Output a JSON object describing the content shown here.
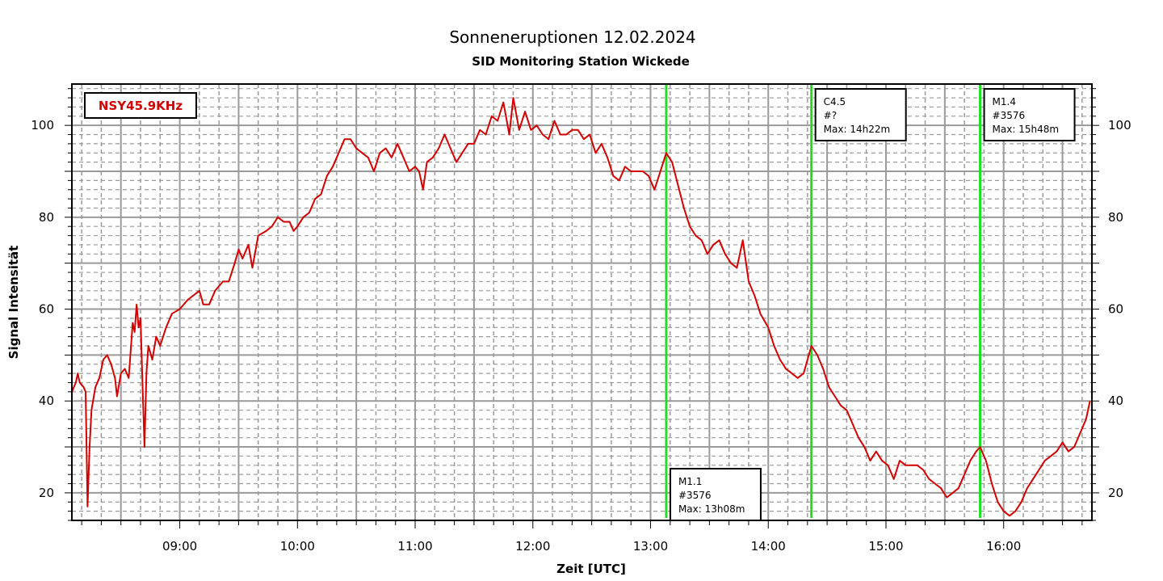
{
  "chart_data": {
    "type": "line",
    "title": "Sonneneruptionen 12.02.2024",
    "subtitle": "SID Monitoring Station Wickede",
    "xlabel": "Zeit [UTC]",
    "ylabel": "Signal Intensität",
    "x_unit": "UTC",
    "xlim": [
      "08:05",
      "16:45"
    ],
    "ylim": [
      14,
      109
    ],
    "x_ticks": [
      "09:00",
      "10:00",
      "11:00",
      "12:00",
      "13:00",
      "14:00",
      "15:00",
      "16:00"
    ],
    "y_ticks": [
      20,
      40,
      60,
      80,
      100
    ],
    "grid": true,
    "legend": {
      "placement": "top-left",
      "entries": [
        "NSY45.9KHz"
      ]
    },
    "colors": {
      "series": "#d40000",
      "event_line": "#22dd22",
      "grid": "#9a9a9a"
    },
    "series": [
      {
        "name": "NSY45.9KHz",
        "points": [
          [
            "08:05",
            42
          ],
          [
            "08:07",
            44
          ],
          [
            "08:08",
            46
          ],
          [
            "08:09",
            44
          ],
          [
            "08:11",
            43
          ],
          [
            "08:12",
            42
          ],
          [
            "08:13",
            17
          ],
          [
            "08:14",
            30
          ],
          [
            "08:15",
            38
          ],
          [
            "08:17",
            43
          ],
          [
            "08:19",
            45
          ],
          [
            "08:21",
            49
          ],
          [
            "08:23",
            50
          ],
          [
            "08:25",
            48
          ],
          [
            "08:27",
            45
          ],
          [
            "08:28",
            41
          ],
          [
            "08:30",
            46
          ],
          [
            "08:32",
            47
          ],
          [
            "08:34",
            45
          ],
          [
            "08:36",
            57
          ],
          [
            "08:37",
            55
          ],
          [
            "08:38",
            61
          ],
          [
            "08:39",
            56
          ],
          [
            "08:40",
            58
          ],
          [
            "08:41",
            44
          ],
          [
            "08:42",
            30
          ],
          [
            "08:43",
            46
          ],
          [
            "08:44",
            52
          ],
          [
            "08:46",
            49
          ],
          [
            "08:48",
            54
          ],
          [
            "08:50",
            52
          ],
          [
            "08:53",
            56
          ],
          [
            "08:56",
            59
          ],
          [
            "09:00",
            60
          ],
          [
            "09:04",
            62
          ],
          [
            "09:07",
            63
          ],
          [
            "09:10",
            64
          ],
          [
            "09:12",
            61
          ],
          [
            "09:15",
            61
          ],
          [
            "09:18",
            64
          ],
          [
            "09:22",
            66
          ],
          [
            "09:25",
            66
          ],
          [
            "09:28",
            70
          ],
          [
            "09:30",
            73
          ],
          [
            "09:32",
            71
          ],
          [
            "09:35",
            74
          ],
          [
            "09:37",
            69
          ],
          [
            "09:40",
            76
          ],
          [
            "09:44",
            77
          ],
          [
            "09:47",
            78
          ],
          [
            "09:50",
            80
          ],
          [
            "09:53",
            79
          ],
          [
            "09:56",
            79
          ],
          [
            "09:58",
            77
          ],
          [
            "10:00",
            78
          ],
          [
            "10:03",
            80
          ],
          [
            "10:06",
            81
          ],
          [
            "10:09",
            84
          ],
          [
            "10:12",
            85
          ],
          [
            "10:15",
            89
          ],
          [
            "10:18",
            91
          ],
          [
            "10:21",
            94
          ],
          [
            "10:24",
            97
          ],
          [
            "10:27",
            97
          ],
          [
            "10:30",
            95
          ],
          [
            "10:33",
            94
          ],
          [
            "10:36",
            93
          ],
          [
            "10:39",
            90
          ],
          [
            "10:42",
            94
          ],
          [
            "10:45",
            95
          ],
          [
            "10:48",
            93
          ],
          [
            "10:51",
            96
          ],
          [
            "10:54",
            93
          ],
          [
            "10:57",
            90
          ],
          [
            "11:00",
            91
          ],
          [
            "11:02",
            90
          ],
          [
            "11:04",
            86
          ],
          [
            "11:06",
            92
          ],
          [
            "11:09",
            93
          ],
          [
            "11:12",
            95
          ],
          [
            "11:15",
            98
          ],
          [
            "11:18",
            95
          ],
          [
            "11:21",
            92
          ],
          [
            "11:24",
            94
          ],
          [
            "11:27",
            96
          ],
          [
            "11:30",
            96
          ],
          [
            "11:33",
            99
          ],
          [
            "11:36",
            98
          ],
          [
            "11:39",
            102
          ],
          [
            "11:42",
            101
          ],
          [
            "11:45",
            105
          ],
          [
            "11:48",
            98
          ],
          [
            "11:50",
            106
          ],
          [
            "11:53",
            99
          ],
          [
            "11:56",
            103
          ],
          [
            "11:59",
            99
          ],
          [
            "12:02",
            100
          ],
          [
            "12:05",
            98
          ],
          [
            "12:08",
            97
          ],
          [
            "12:11",
            101
          ],
          [
            "12:14",
            98
          ],
          [
            "12:17",
            98
          ],
          [
            "12:20",
            99
          ],
          [
            "12:23",
            99
          ],
          [
            "12:26",
            97
          ],
          [
            "12:29",
            98
          ],
          [
            "12:32",
            94
          ],
          [
            "12:35",
            96
          ],
          [
            "12:38",
            93
          ],
          [
            "12:41",
            89
          ],
          [
            "12:44",
            88
          ],
          [
            "12:47",
            91
          ],
          [
            "12:50",
            90
          ],
          [
            "12:53",
            90
          ],
          [
            "12:56",
            90
          ],
          [
            "12:59",
            89
          ],
          [
            "13:02",
            86
          ],
          [
            "13:05",
            90
          ],
          [
            "13:08",
            94
          ],
          [
            "13:11",
            92
          ],
          [
            "13:14",
            87
          ],
          [
            "13:17",
            82
          ],
          [
            "13:20",
            78
          ],
          [
            "13:23",
            76
          ],
          [
            "13:26",
            75
          ],
          [
            "13:29",
            72
          ],
          [
            "13:32",
            74
          ],
          [
            "13:35",
            75
          ],
          [
            "13:38",
            72
          ],
          [
            "13:41",
            70
          ],
          [
            "13:44",
            69
          ],
          [
            "13:47",
            75
          ],
          [
            "13:50",
            66
          ],
          [
            "13:53",
            63
          ],
          [
            "13:56",
            59
          ],
          [
            "14:00",
            56
          ],
          [
            "14:03",
            52
          ],
          [
            "14:06",
            49
          ],
          [
            "14:09",
            47
          ],
          [
            "14:12",
            46
          ],
          [
            "14:15",
            45
          ],
          [
            "14:18",
            46
          ],
          [
            "14:22",
            52
          ],
          [
            "14:25",
            50
          ],
          [
            "14:28",
            47
          ],
          [
            "14:31",
            43
          ],
          [
            "14:34",
            41
          ],
          [
            "14:37",
            39
          ],
          [
            "14:40",
            38
          ],
          [
            "14:43",
            35
          ],
          [
            "14:46",
            32
          ],
          [
            "14:49",
            30
          ],
          [
            "14:52",
            27
          ],
          [
            "14:55",
            29
          ],
          [
            "14:58",
            27
          ],
          [
            "15:01",
            26
          ],
          [
            "15:04",
            23
          ],
          [
            "15:07",
            27
          ],
          [
            "15:10",
            26
          ],
          [
            "15:13",
            26
          ],
          [
            "15:16",
            26
          ],
          [
            "15:19",
            25
          ],
          [
            "15:22",
            23
          ],
          [
            "15:25",
            22
          ],
          [
            "15:28",
            21
          ],
          [
            "15:31",
            19
          ],
          [
            "15:34",
            20
          ],
          [
            "15:37",
            21
          ],
          [
            "15:40",
            24
          ],
          [
            "15:43",
            27
          ],
          [
            "15:46",
            29
          ],
          [
            "15:48",
            30
          ],
          [
            "15:51",
            27
          ],
          [
            "15:54",
            22
          ],
          [
            "15:57",
            18
          ],
          [
            "16:00",
            16
          ],
          [
            "16:03",
            15
          ],
          [
            "16:06",
            16
          ],
          [
            "16:09",
            18
          ],
          [
            "16:12",
            21
          ],
          [
            "16:15",
            23
          ],
          [
            "16:18",
            25
          ],
          [
            "16:21",
            27
          ],
          [
            "16:24",
            28
          ],
          [
            "16:27",
            29
          ],
          [
            "16:30",
            31
          ],
          [
            "16:33",
            29
          ],
          [
            "16:36",
            30
          ],
          [
            "16:39",
            33
          ],
          [
            "16:42",
            36
          ],
          [
            "16:44",
            40
          ]
        ]
      }
    ],
    "annotations": [
      {
        "x": "13:08",
        "lines": [
          "M1.1",
          "#3576",
          "Max: 13h08m"
        ],
        "placement": "bottom"
      },
      {
        "x": "14:22",
        "lines": [
          "C4.5",
          "#?",
          "Max: 14h22m"
        ],
        "placement": "top"
      },
      {
        "x": "15:48",
        "lines": [
          "M1.4",
          "#3576",
          "Max: 15h48m"
        ],
        "placement": "top"
      }
    ]
  }
}
